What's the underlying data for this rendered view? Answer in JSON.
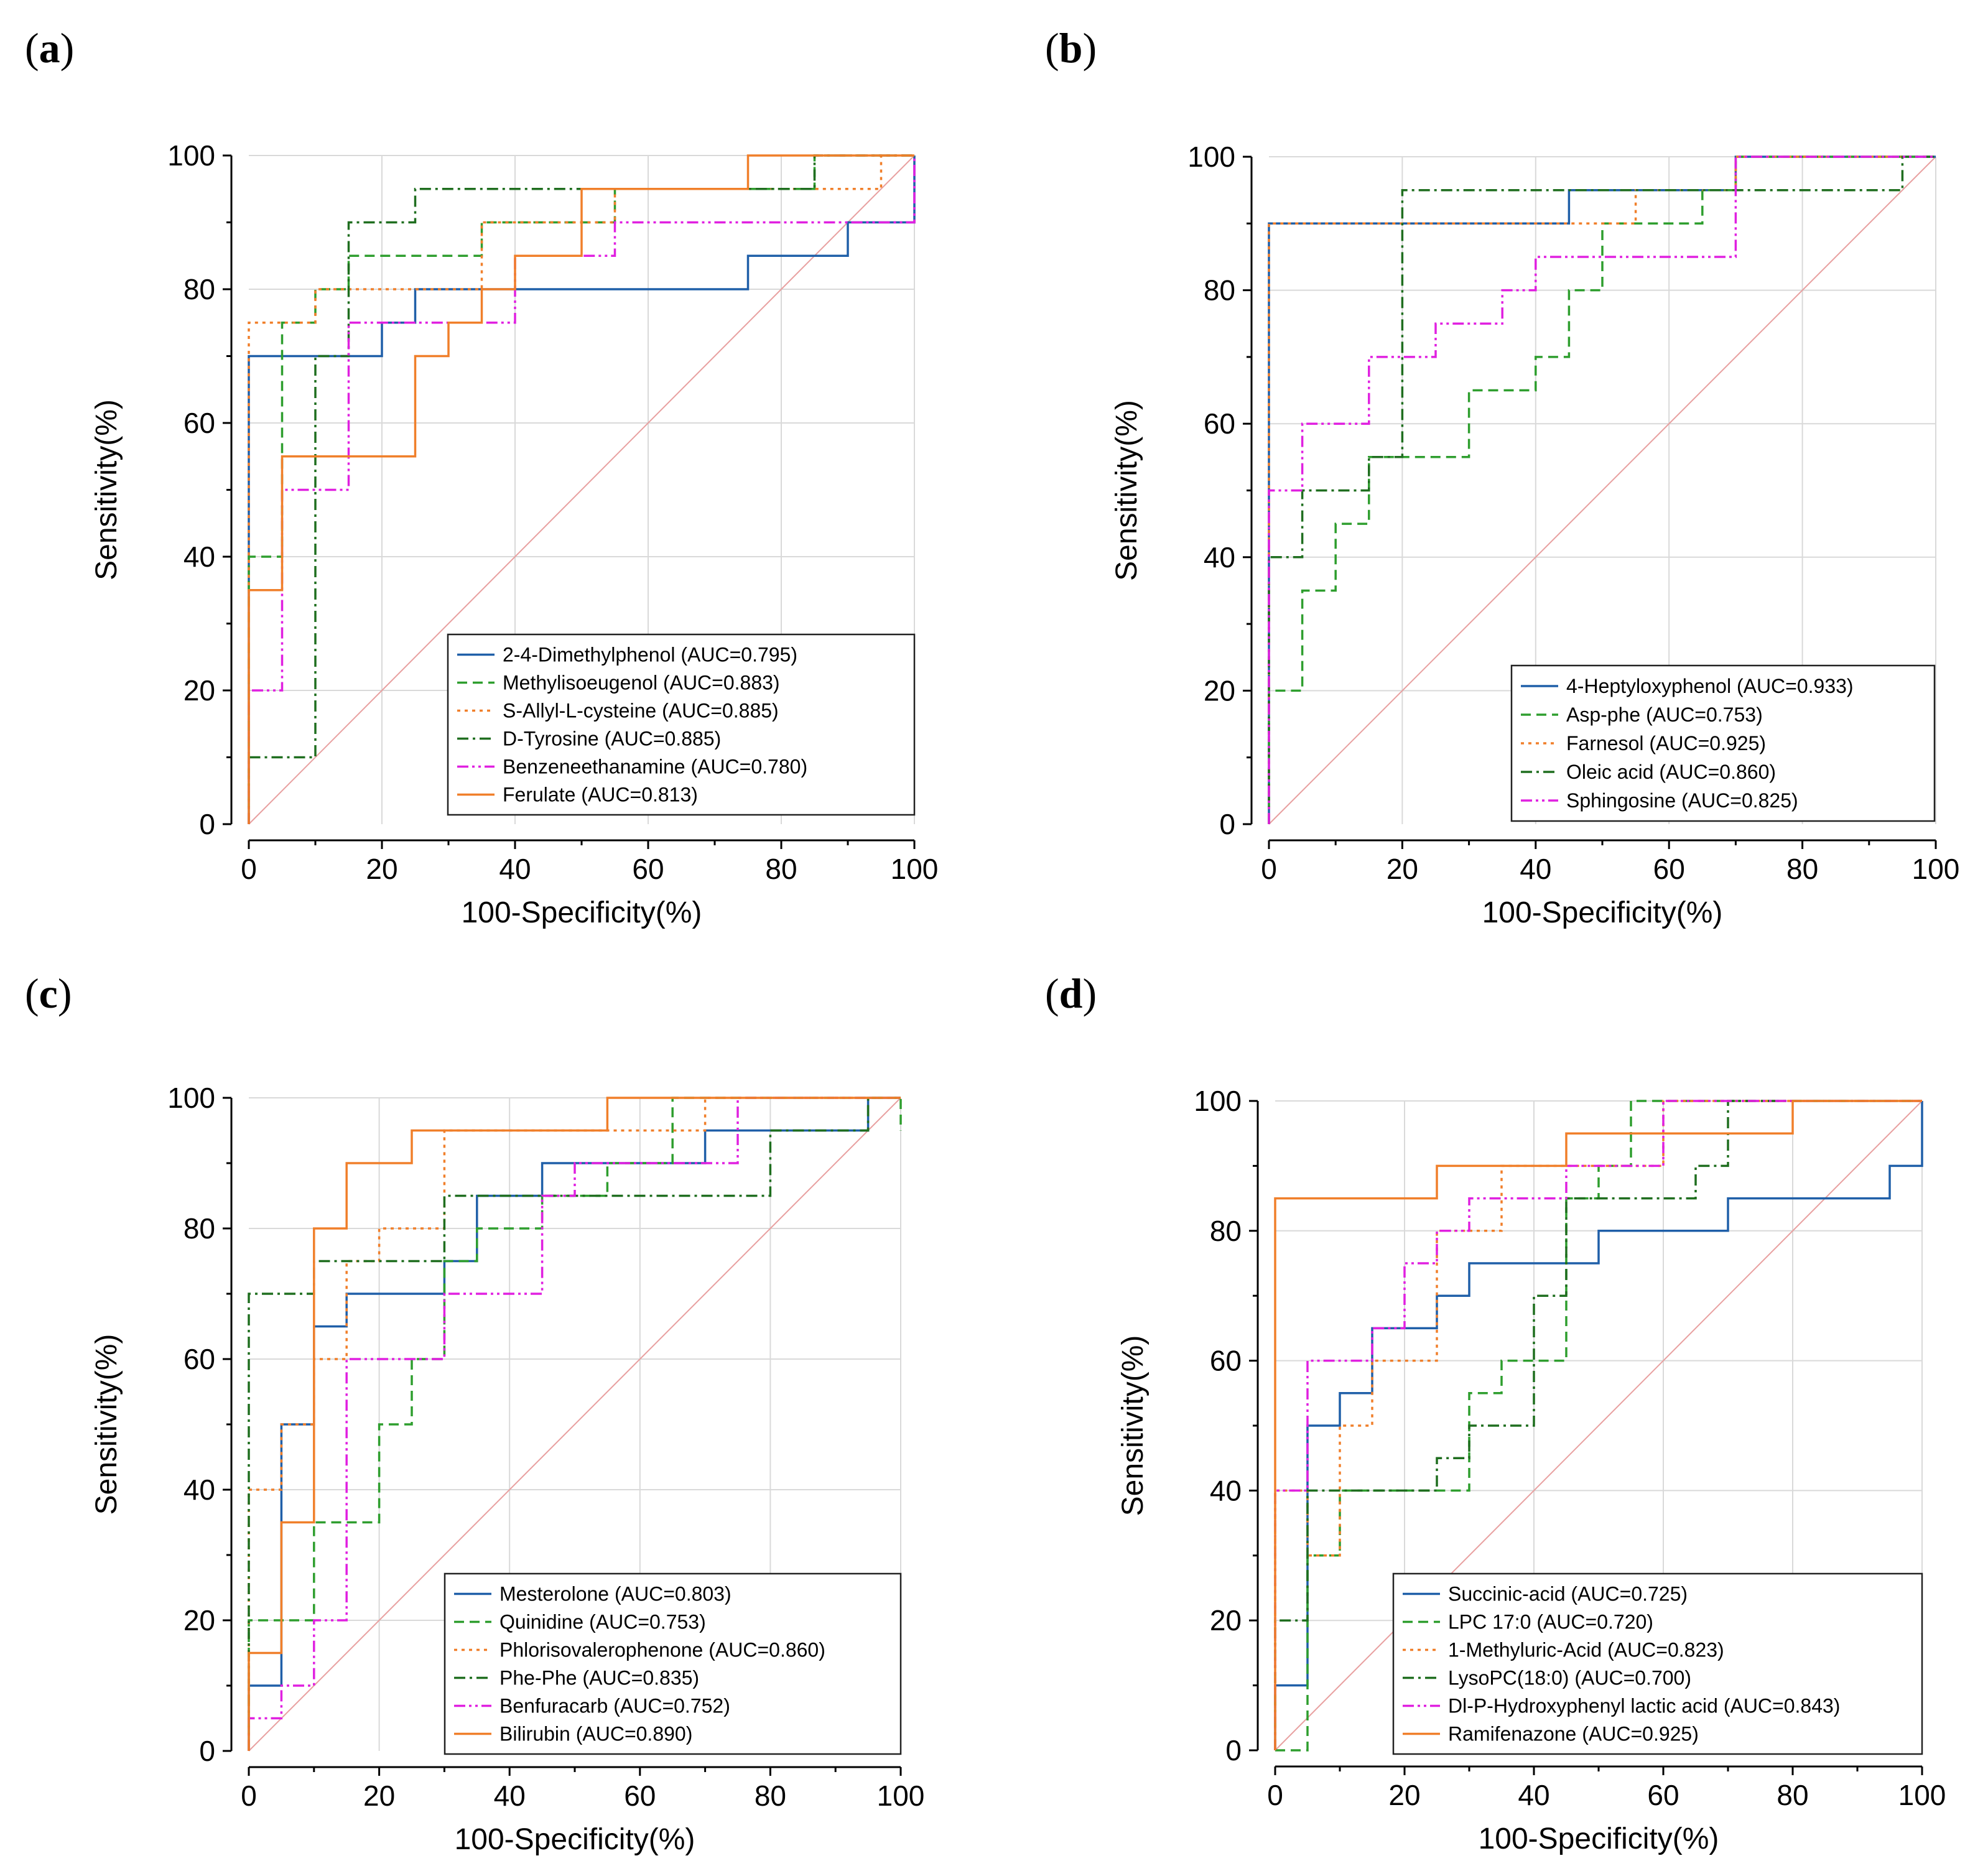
{
  "chart_data": [
    {
      "type": "line",
      "panel_label": "a",
      "xlabel": "100-Specificity(%)",
      "ylabel": "Sensitivity(%)",
      "xlim": [
        0,
        100
      ],
      "ylim": [
        0,
        100
      ],
      "xticks": [
        0,
        20,
        40,
        60,
        80,
        100
      ],
      "yticks": [
        0,
        20,
        40,
        60,
        80,
        100
      ],
      "grid": true,
      "legend_position": "bottom-right",
      "reference_line": true,
      "series": [
        {
          "name": "2-4-Dimethylphenol (AUC=0.795)",
          "color": "#1f5fa8",
          "dash": "solid",
          "x": [
            0,
            0,
            20,
            20,
            25,
            25,
            40,
            40,
            75,
            75,
            90,
            90,
            100,
            100
          ],
          "y": [
            0,
            70,
            70,
            75,
            75,
            80,
            80,
            80,
            80,
            85,
            85,
            90,
            90,
            100
          ]
        },
        {
          "name": "Methylisoeugenol (AUC=0.883)",
          "color": "#2e9e2e",
          "dash": "dashed",
          "x": [
            0,
            0,
            5,
            5,
            10,
            10,
            15,
            15,
            35,
            35,
            55,
            55,
            85,
            85,
            100
          ],
          "y": [
            0,
            40,
            40,
            75,
            75,
            80,
            80,
            85,
            85,
            90,
            90,
            95,
            95,
            100,
            100
          ]
        },
        {
          "name": "S-Allyl-L-cysteine (AUC=0.885)",
          "color": "#f07f2a",
          "dash": "dotted",
          "x": [
            0,
            0,
            5,
            5,
            10,
            10,
            35,
            35,
            55,
            55,
            95,
            95,
            100
          ],
          "y": [
            0,
            75,
            75,
            75,
            75,
            80,
            80,
            90,
            90,
            95,
            95,
            100,
            100
          ]
        },
        {
          "name": "D-Tyrosine (AUC=0.885)",
          "color": "#1f6e1f",
          "dash": "dashdot",
          "x": [
            0,
            0,
            10,
            10,
            15,
            15,
            25,
            25,
            30,
            30,
            85,
            85,
            100
          ],
          "y": [
            0,
            10,
            10,
            70,
            70,
            90,
            90,
            95,
            95,
            95,
            95,
            100,
            100
          ]
        },
        {
          "name": "Benzeneethanamine (AUC=0.780)",
          "color": "#e020e0",
          "dash": "dashdotdot",
          "x": [
            0,
            0,
            5,
            5,
            10,
            10,
            15,
            15,
            20,
            20,
            40,
            40,
            55,
            55,
            100,
            100
          ],
          "y": [
            0,
            20,
            20,
            50,
            50,
            50,
            50,
            75,
            75,
            75,
            75,
            85,
            85,
            90,
            90,
            100
          ]
        },
        {
          "name": "Ferulate (AUC=0.813)",
          "color": "#f07f2a",
          "dash": "solid",
          "x": [
            0,
            0,
            5,
            5,
            25,
            25,
            30,
            30,
            35,
            35,
            40,
            40,
            50,
            50,
            75,
            75,
            100
          ],
          "y": [
            0,
            35,
            35,
            55,
            55,
            70,
            70,
            75,
            75,
            80,
            80,
            85,
            85,
            95,
            95,
            100,
            100
          ]
        }
      ]
    },
    {
      "type": "line",
      "panel_label": "b",
      "xlabel": "100-Specificity(%)",
      "ylabel": "Sensitivity(%)",
      "xlim": [
        0,
        100
      ],
      "ylim": [
        0,
        100
      ],
      "xticks": [
        0,
        20,
        40,
        60,
        80,
        100
      ],
      "yticks": [
        0,
        20,
        40,
        60,
        80,
        100
      ],
      "grid": true,
      "legend_position": "bottom-right",
      "reference_line": true,
      "series": [
        {
          "name": "4-Heptyloxyphenol (AUC=0.933)",
          "color": "#1f5fa8",
          "dash": "solid",
          "x": [
            0,
            0,
            45,
            45,
            70,
            70,
            90,
            90,
            100
          ],
          "y": [
            0,
            90,
            90,
            95,
            95,
            100,
            100,
            100,
            100
          ]
        },
        {
          "name": "Asp-phe (AUC=0.753)",
          "color": "#2e9e2e",
          "dash": "dashed",
          "x": [
            0,
            0,
            5,
            5,
            10,
            10,
            15,
            15,
            20,
            20,
            30,
            30,
            40,
            40,
            45,
            45,
            50,
            50,
            65,
            65,
            70,
            70,
            95,
            95,
            100
          ],
          "y": [
            0,
            20,
            20,
            35,
            35,
            45,
            45,
            55,
            55,
            55,
            55,
            65,
            65,
            70,
            70,
            80,
            80,
            90,
            90,
            95,
            95,
            100,
            100,
            100,
            100
          ]
        },
        {
          "name": "Farnesol (AUC=0.925)",
          "color": "#f07f2a",
          "dash": "dotted",
          "x": [
            0,
            0,
            55,
            55,
            70,
            70,
            100
          ],
          "y": [
            0,
            90,
            90,
            95,
            95,
            100,
            100
          ]
        },
        {
          "name": "Oleic acid (AUC=0.860)",
          "color": "#1f6e1f",
          "dash": "dashdot",
          "x": [
            0,
            0,
            5,
            5,
            15,
            15,
            20,
            20,
            70,
            70,
            95,
            95,
            100
          ],
          "y": [
            0,
            40,
            40,
            50,
            50,
            55,
            55,
            95,
            95,
            95,
            95,
            100,
            100
          ]
        },
        {
          "name": "Sphingosine (AUC=0.825)",
          "color": "#e020e0",
          "dash": "dashdotdot",
          "x": [
            0,
            0,
            5,
            5,
            15,
            15,
            25,
            25,
            35,
            35,
            40,
            40,
            70,
            70,
            100
          ],
          "y": [
            0,
            50,
            50,
            60,
            60,
            70,
            70,
            75,
            75,
            80,
            80,
            85,
            85,
            100,
            100
          ]
        }
      ]
    },
    {
      "type": "line",
      "panel_label": "c",
      "xlabel": "100-Specificity(%)",
      "ylabel": "Sensitivity(%)",
      "xlim": [
        0,
        100
      ],
      "ylim": [
        0,
        100
      ],
      "xticks": [
        0,
        20,
        40,
        60,
        80,
        100
      ],
      "yticks": [
        0,
        20,
        40,
        60,
        80,
        100
      ],
      "grid": true,
      "legend_position": "bottom-right",
      "reference_line": true,
      "series": [
        {
          "name": "Mesterolone (AUC=0.803)",
          "color": "#1f5fa8",
          "dash": "solid",
          "x": [
            0,
            0,
            5,
            5,
            10,
            10,
            15,
            15,
            30,
            30,
            35,
            35,
            45,
            45,
            70,
            70,
            95,
            95,
            100
          ],
          "y": [
            0,
            10,
            10,
            50,
            50,
            65,
            65,
            70,
            70,
            75,
            75,
            85,
            85,
            90,
            90,
            95,
            95,
            100,
            100
          ]
        },
        {
          "name": "Quinidine (AUC=0.753)",
          "color": "#2e9e2e",
          "dash": "dashed",
          "x": [
            0,
            0,
            10,
            10,
            20,
            20,
            25,
            25,
            30,
            30,
            35,
            35,
            45,
            45,
            55,
            55,
            65,
            65,
            100,
            100
          ],
          "y": [
            0,
            20,
            20,
            35,
            35,
            50,
            50,
            60,
            60,
            75,
            75,
            80,
            80,
            85,
            85,
            90,
            90,
            100,
            100,
            95
          ]
        },
        {
          "name": "Phlorisovalerophenone (AUC=0.860)",
          "color": "#f07f2a",
          "dash": "dotted",
          "x": [
            0,
            0,
            5,
            5,
            10,
            10,
            15,
            15,
            20,
            20,
            30,
            30,
            70,
            70,
            100
          ],
          "y": [
            0,
            40,
            40,
            50,
            50,
            60,
            60,
            75,
            75,
            80,
            80,
            95,
            95,
            100,
            100
          ]
        },
        {
          "name": "Phe-Phe (AUC=0.835)",
          "color": "#1f6e1f",
          "dash": "dashdot",
          "x": [
            0,
            0,
            10,
            10,
            30,
            30,
            80,
            80,
            95,
            95,
            100
          ],
          "y": [
            0,
            70,
            70,
            75,
            75,
            85,
            85,
            95,
            95,
            100,
            100
          ]
        },
        {
          "name": "Benfuracarb (AUC=0.752)",
          "color": "#e020e0",
          "dash": "dashdotdot",
          "x": [
            0,
            0,
            5,
            5,
            10,
            10,
            15,
            15,
            30,
            30,
            45,
            45,
            50,
            50,
            75,
            75,
            100
          ],
          "y": [
            0,
            5,
            5,
            10,
            10,
            20,
            20,
            60,
            60,
            70,
            70,
            85,
            85,
            90,
            90,
            100,
            100
          ]
        },
        {
          "name": "Bilirubin (AUC=0.890)",
          "color": "#f07f2a",
          "dash": "solid",
          "x": [
            0,
            0,
            5,
            5,
            10,
            10,
            15,
            15,
            25,
            25,
            55,
            55,
            100
          ],
          "y": [
            0,
            15,
            15,
            35,
            35,
            80,
            80,
            90,
            90,
            95,
            95,
            100,
            100
          ]
        }
      ]
    },
    {
      "type": "line",
      "panel_label": "d",
      "xlabel": "100-Specificity(%)",
      "ylabel": "Sensitivity(%)",
      "xlim": [
        0,
        100
      ],
      "ylim": [
        0,
        100
      ],
      "xticks": [
        0,
        20,
        40,
        60,
        80,
        100
      ],
      "yticks": [
        0,
        20,
        40,
        60,
        80,
        100
      ],
      "grid": true,
      "legend_position": "bottom-right",
      "reference_line": true,
      "series": [
        {
          "name": "Succinic-acid (AUC=0.725)",
          "color": "#1f5fa8",
          "dash": "solid",
          "x": [
            0,
            0,
            5,
            5,
            10,
            10,
            15,
            15,
            25,
            25,
            30,
            30,
            45,
            45,
            50,
            50,
            70,
            70,
            95,
            95,
            100,
            100
          ],
          "y": [
            0,
            10,
            10,
            50,
            50,
            55,
            55,
            65,
            65,
            70,
            70,
            75,
            75,
            75,
            75,
            80,
            80,
            85,
            85,
            90,
            90,
            100
          ]
        },
        {
          "name": "LPC 17:0 (AUC=0.720)",
          "color": "#2e9e2e",
          "dash": "dashed",
          "x": [
            0,
            0,
            5,
            5,
            10,
            10,
            30,
            30,
            35,
            35,
            40,
            40,
            45,
            45,
            50,
            50,
            55,
            55,
            100
          ],
          "y": [
            0,
            0,
            0,
            30,
            30,
            40,
            40,
            55,
            55,
            60,
            60,
            60,
            60,
            85,
            85,
            90,
            90,
            100,
            100
          ]
        },
        {
          "name": "1-Methyluric-Acid (AUC=0.823)",
          "color": "#f07f2a",
          "dash": "dotted",
          "x": [
            0,
            0,
            5,
            5,
            10,
            10,
            15,
            15,
            25,
            25,
            35,
            35,
            60,
            60,
            100
          ],
          "y": [
            0,
            40,
            40,
            30,
            30,
            50,
            50,
            60,
            60,
            80,
            80,
            90,
            90,
            100,
            100
          ]
        },
        {
          "name": "LysoPC(18:0) (AUC=0.700)",
          "color": "#1f6e1f",
          "dash": "dashdot",
          "x": [
            0,
            0,
            5,
            5,
            25,
            25,
            30,
            30,
            40,
            40,
            45,
            45,
            65,
            65,
            70,
            70,
            100
          ],
          "y": [
            0,
            20,
            20,
            40,
            40,
            45,
            45,
            50,
            50,
            70,
            70,
            85,
            85,
            90,
            90,
            100,
            100
          ]
        },
        {
          "name": "Dl-P-Hydroxyphenyl lactic acid (AUC=0.843)",
          "color": "#e020e0",
          "dash": "dashdotdot",
          "x": [
            0,
            0,
            5,
            5,
            15,
            15,
            20,
            20,
            25,
            25,
            30,
            30,
            45,
            45,
            60,
            60,
            100
          ],
          "y": [
            0,
            40,
            40,
            60,
            60,
            65,
            65,
            75,
            75,
            80,
            80,
            85,
            85,
            90,
            90,
            100,
            100
          ]
        },
        {
          "name": "Ramifenazone (AUC=0.925)",
          "color": "#f07f2a",
          "dash": "solid",
          "x": [
            0,
            0,
            25,
            25,
            45,
            45,
            80,
            80,
            100
          ],
          "y": [
            0,
            85,
            85,
            90,
            90,
            95,
            95,
            100,
            100
          ]
        }
      ]
    }
  ]
}
